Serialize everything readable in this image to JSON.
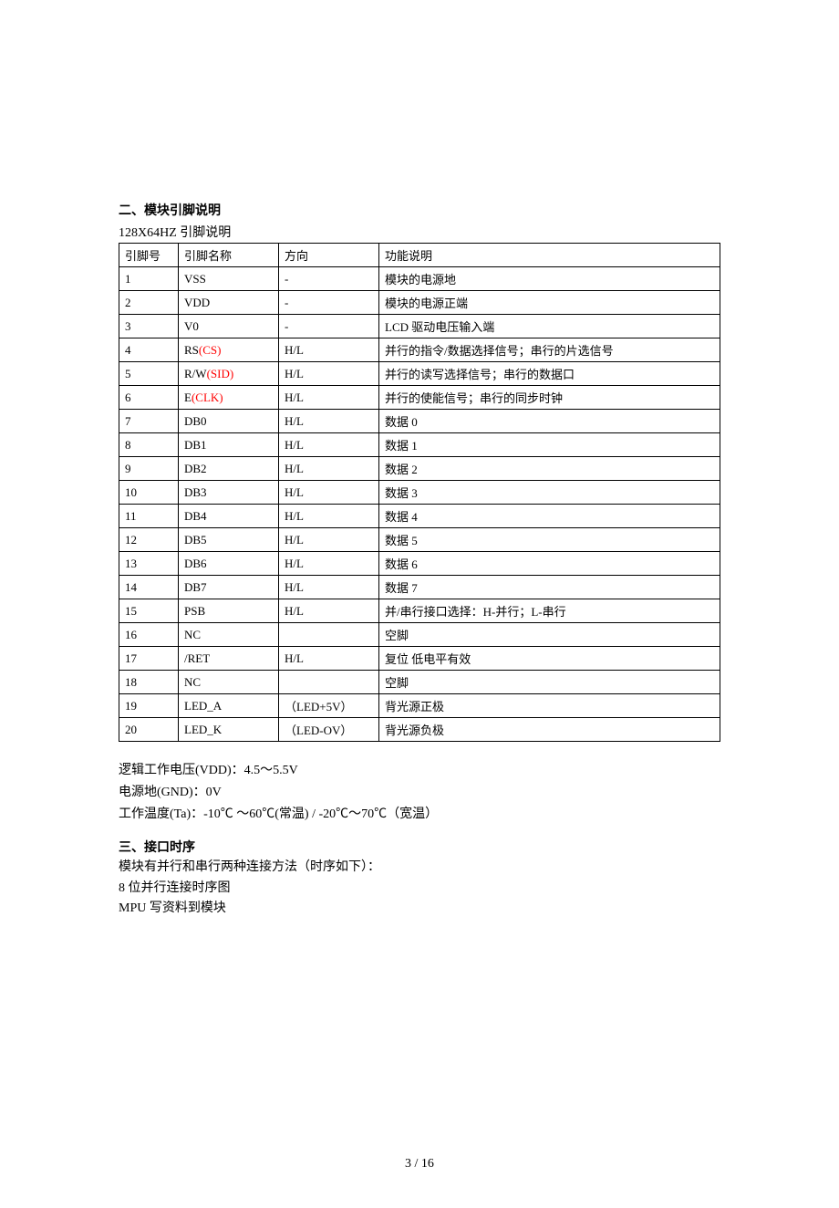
{
  "section2": {
    "heading": "二、模块引脚说明",
    "subtitle": "128X64HZ  引脚说明",
    "table": {
      "header": {
        "pin_no": "引脚号",
        "pin_name": "引脚名称",
        "direction": "方向",
        "function": "功能说明"
      },
      "rows": [
        {
          "no": "1",
          "name": "VSS",
          "alt": "",
          "dir": "-",
          "func": "模块的电源地"
        },
        {
          "no": "2",
          "name": "VDD",
          "alt": "",
          "dir": "-",
          "func": "模块的电源正端"
        },
        {
          "no": "3",
          "name": "V0",
          "alt": "",
          "dir": "-",
          "func": "LCD 驱动电压输入端"
        },
        {
          "no": "4",
          "name": "RS",
          "alt": "(CS)",
          "dir": "H/L",
          "func": "并行的指令/数据选择信号；串行的片选信号"
        },
        {
          "no": "5",
          "name": "R/W",
          "alt": "(SID)",
          "dir": "H/L",
          "func": "并行的读写选择信号；串行的数据口"
        },
        {
          "no": "6",
          "name": "E",
          "alt": "(CLK)",
          "dir": "H/L",
          "func": "并行的使能信号；串行的同步时钟"
        },
        {
          "no": "7",
          "name": "DB0",
          "alt": "",
          "dir": "H/L",
          "func": "数据 0"
        },
        {
          "no": "8",
          "name": "DB1",
          "alt": "",
          "dir": "H/L",
          "func": "数据 1"
        },
        {
          "no": "9",
          "name": "DB2",
          "alt": "",
          "dir": "H/L",
          "func": "数据 2"
        },
        {
          "no": "10",
          "name": "DB3",
          "alt": "",
          "dir": "H/L",
          "func": "数据 3"
        },
        {
          "no": "11",
          "name": "DB4",
          "alt": "",
          "dir": "H/L",
          "func": "数据 4"
        },
        {
          "no": "12",
          "name": "DB5",
          "alt": "",
          "dir": "H/L",
          "func": "数据 5"
        },
        {
          "no": "13",
          "name": "DB6",
          "alt": "",
          "dir": "H/L",
          "func": "数据 6"
        },
        {
          "no": "14",
          "name": "DB7",
          "alt": "",
          "dir": "H/L",
          "func": "数据 7"
        },
        {
          "no": "15",
          "name": "PSB",
          "alt": "",
          "dir": "H/L",
          "func": "并/串行接口选择：H-并行；L-串行"
        },
        {
          "no": "16",
          "name": "NC",
          "alt": "",
          "dir": "",
          "func": "空脚"
        },
        {
          "no": "17",
          "name": "/RET",
          "alt": "",
          "dir": "H/L",
          "func": "复位 低电平有效"
        },
        {
          "no": "18",
          "name": "NC",
          "alt": "",
          "dir": "",
          "func": "空脚"
        },
        {
          "no": "19",
          "name": "LED_A",
          "alt": "",
          "dir": "（LED+5V）",
          "func": "背光源正极"
        },
        {
          "no": "20",
          "name": "LED_K",
          "alt": "",
          "dir": "（LED-OV）",
          "func": "背光源负极"
        }
      ]
    }
  },
  "specs": {
    "line1": "逻辑工作电压(VDD)：4.5～5.5V",
    "line2": "电源地(GND)：0V",
    "line3": "工作温度(Ta)：-10℃ ～60℃(常温) / -20℃～70℃（宽温）"
  },
  "section3": {
    "heading": "三、接口时序",
    "line1": "模块有并行和串行两种连接方法（时序如下）：",
    "line2": "8 位并行连接时序图",
    "line3": "MPU 写资料到模块"
  },
  "footer": {
    "page": "3 / 16"
  },
  "styles": {
    "alt_color": "#ff0000",
    "text_color": "#000000",
    "border_color": "#000000",
    "background": "#ffffff"
  }
}
